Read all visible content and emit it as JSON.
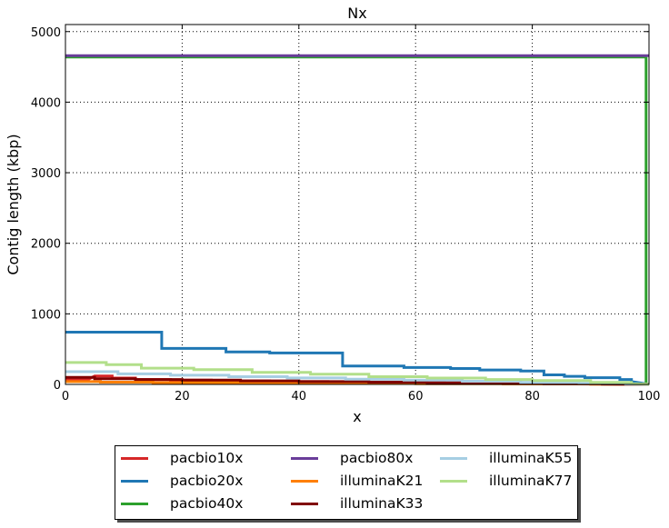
{
  "chart_data": {
    "type": "line",
    "title": "Nx",
    "xlabel": "x",
    "ylabel": "Contig length (kbp)",
    "xlim": [
      0,
      100
    ],
    "ylim": [
      0,
      5100
    ],
    "xticks": [
      "0",
      "20",
      "40",
      "60",
      "80",
      "100"
    ],
    "yticks": [
      "0",
      "1000",
      "2000",
      "3000",
      "4000",
      "5000"
    ],
    "grid": true,
    "legend_position": "bottom-center, below plot, 3 columns",
    "series": [
      {
        "name": "pacbio10x",
        "color": "#d62728",
        "x": [
          0,
          4,
          5,
          8,
          8,
          12,
          12,
          18,
          18,
          25,
          25,
          35,
          35,
          45,
          45,
          55,
          55,
          65,
          65,
          75,
          75,
          85,
          85,
          100
        ],
        "y": [
          75,
          75,
          120,
          120,
          90,
          90,
          70,
          70,
          60,
          60,
          50,
          50,
          40,
          40,
          32,
          32,
          25,
          25,
          18,
          18,
          12,
          12,
          6,
          2
        ]
      },
      {
        "name": "pacbio20x",
        "color": "#1f77b4",
        "x": [
          0,
          16.5,
          16.5,
          27.5,
          27.5,
          35,
          35,
          47.5,
          47.5,
          58,
          58,
          66,
          66,
          71,
          71,
          78,
          78,
          82,
          82,
          85.5,
          85.5,
          89,
          89,
          95,
          95,
          97,
          97,
          99,
          100
        ],
        "y": [
          740,
          740,
          510,
          510,
          460,
          460,
          445,
          445,
          260,
          260,
          240,
          240,
          225,
          225,
          205,
          205,
          190,
          190,
          135,
          135,
          115,
          115,
          95,
          95,
          70,
          70,
          40,
          15,
          5
        ]
      },
      {
        "name": "pacbio40x",
        "color": "#2ca02c",
        "x": [
          0,
          99.5,
          99.5,
          100
        ],
        "y": [
          4640,
          4640,
          5,
          5
        ]
      },
      {
        "name": "pacbio80x",
        "color": "#6a3d9a",
        "x": [
          0,
          100
        ],
        "y": [
          4660,
          4660
        ]
      },
      {
        "name": "illuminaK21",
        "color": "#ff7f00",
        "x": [
          0,
          6,
          6,
          15,
          15,
          30,
          30,
          45,
          45,
          60,
          60,
          75,
          75,
          90,
          90,
          100
        ],
        "y": [
          40,
          40,
          32,
          32,
          26,
          26,
          20,
          20,
          15,
          15,
          10,
          10,
          6,
          6,
          3,
          1
        ]
      },
      {
        "name": "illuminaK33",
        "color": "#800000",
        "x": [
          0,
          5,
          5,
          12,
          12,
          20,
          20,
          30,
          30,
          40,
          40,
          52,
          52,
          62,
          62,
          72,
          72,
          82,
          82,
          92,
          92,
          100
        ],
        "y": [
          100,
          100,
          80,
          80,
          70,
          70,
          60,
          60,
          50,
          50,
          40,
          40,
          32,
          32,
          24,
          24,
          16,
          16,
          10,
          10,
          5,
          1
        ]
      },
      {
        "name": "illuminaK55",
        "color": "#a6cee3",
        "x": [
          0,
          9,
          9,
          18,
          18,
          28,
          28,
          38,
          38,
          48,
          48,
          58,
          58,
          68,
          68,
          78,
          78,
          88,
          88,
          96,
          96,
          100
        ],
        "y": [
          180,
          180,
          150,
          150,
          130,
          130,
          110,
          110,
          92,
          92,
          75,
          75,
          60,
          60,
          45,
          45,
          30,
          30,
          15,
          15,
          5,
          1
        ]
      },
      {
        "name": "illuminaK77",
        "color": "#b2df8a",
        "x": [
          0,
          7,
          7,
          13,
          13,
          22,
          22,
          32,
          32,
          42,
          42,
          52,
          52,
          62,
          62,
          72,
          72,
          80,
          80,
          90,
          90,
          97,
          97,
          100
        ],
        "y": [
          310,
          310,
          280,
          280,
          230,
          230,
          210,
          210,
          170,
          170,
          145,
          145,
          110,
          110,
          90,
          90,
          70,
          70,
          55,
          55,
          30,
          30,
          10,
          2
        ]
      }
    ]
  }
}
